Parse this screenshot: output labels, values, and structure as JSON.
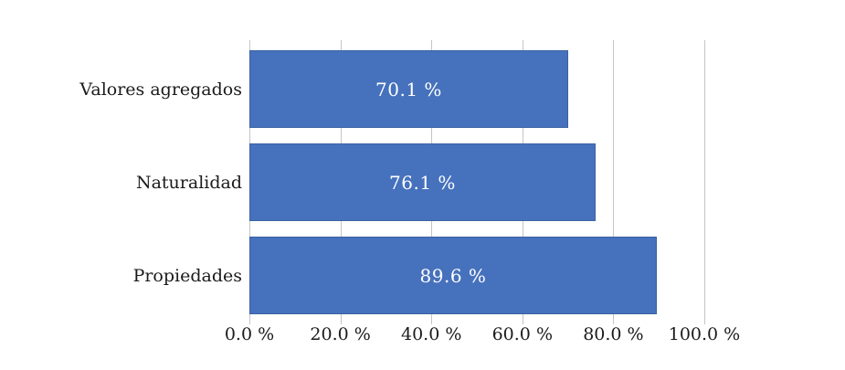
{
  "chart_data": {
    "type": "bar",
    "orientation": "horizontal",
    "title": "",
    "categories": [
      "Valores agregados",
      "Naturalidad",
      "Propiedades"
    ],
    "values": [
      70.1,
      76.1,
      89.6
    ],
    "value_labels": [
      "70.1 %",
      "76.1 %",
      "89.6 %"
    ],
    "xlim": [
      0,
      100
    ],
    "x_ticks": [
      0,
      20,
      40,
      60,
      80,
      100
    ],
    "x_tick_labels": [
      "0.0 %",
      "20.0 %",
      "40.0 %",
      "60.0 %",
      "80.0 %",
      "100.0 %"
    ],
    "grid": true,
    "legend": false,
    "value_label_position": "center",
    "colors": {
      "bar_fill": "#4671bc",
      "bar_border": "#3a62a4",
      "gridline": "#c5c5c5",
      "value_text": "#ffffff",
      "axis_text": "#1b1b1b",
      "background": "#ffffff"
    }
  }
}
